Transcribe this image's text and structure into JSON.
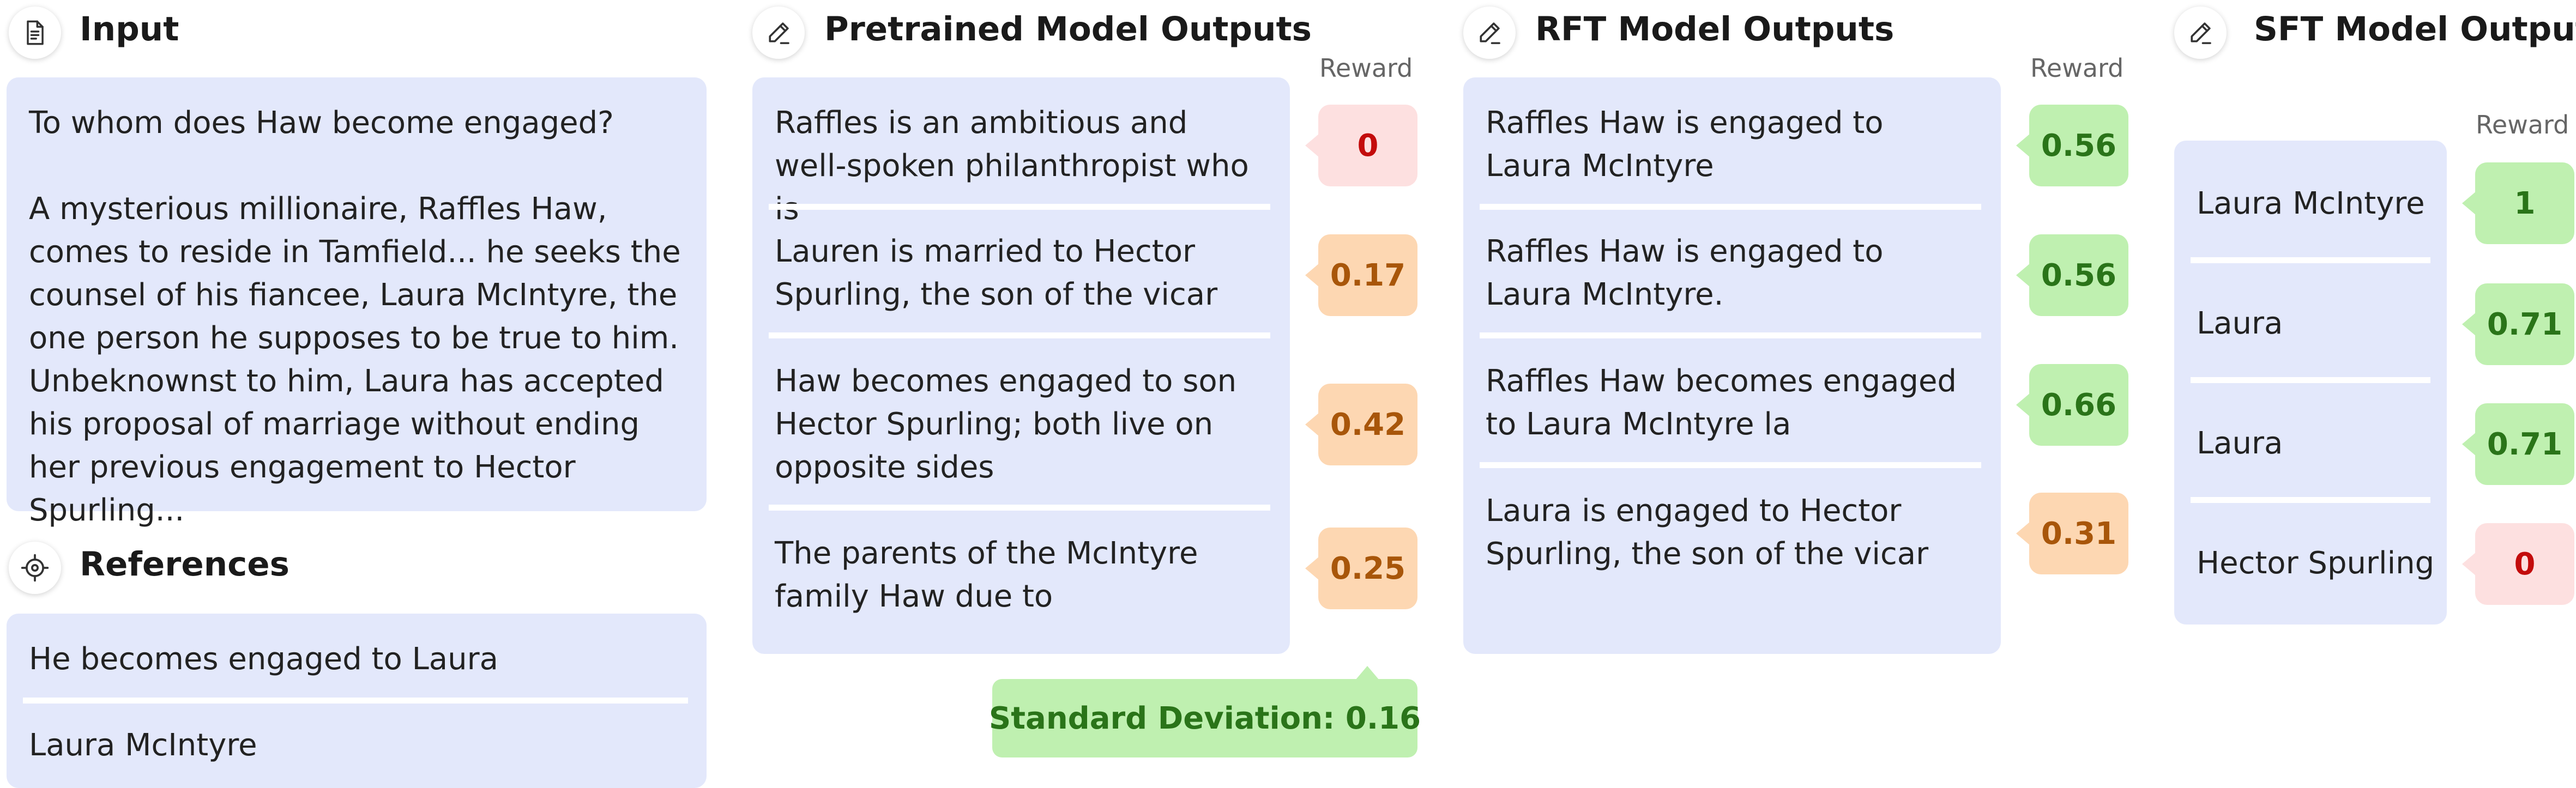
{
  "input": {
    "title": "Input",
    "question": "To whom does Haw become engaged?",
    "passage": "A mysterious millionaire, Raffles Haw, comes to reside in Tamfield... he seeks the counsel of his fiancee, Laura McIntyre, the one person he supposes to be true to him. Unbeknownst to him, Laura has accepted his proposal of marriage without ending her previous engagement to Hector Spurling..."
  },
  "references": {
    "title": "References",
    "items": [
      "He becomes engaged to Laura",
      "Laura McIntyre"
    ]
  },
  "pretrained": {
    "title": "Pretrained Model Outputs",
    "reward_label": "Reward",
    "items": [
      {
        "text": "Raffles is an ambitious and well-spoken philanthropist who is",
        "reward": "0"
      },
      {
        "text": "Lauren is married to Hector Spurling, the son of the vicar",
        "reward": "0.17"
      },
      {
        "text": "Haw becomes engaged to son Hector Spurling; both live on opposite sides",
        "reward": "0.42"
      },
      {
        "text": "The parents of the McIntyre family Haw due to",
        "reward": "0.25"
      }
    ],
    "std_label": "Standard Deviation: 0.16"
  },
  "rft": {
    "title": "RFT Model Outputs",
    "reward_label": "Reward",
    "items": [
      {
        "text": "Raffles Haw is engaged to Laura McIntyre",
        "reward": "0.56"
      },
      {
        "text": "Raffles Haw is engaged to Laura McIntyre.",
        "reward": "0.56"
      },
      {
        "text": "Raffles Haw becomes engaged to Laura McIntyre la",
        "reward": "0.66"
      },
      {
        "text": "Laura is engaged to Hector Spurling, the son of the vicar",
        "reward": "0.31"
      }
    ]
  },
  "sft": {
    "title": "SFT Model Outputs",
    "reward_label": "Reward",
    "items": [
      {
        "text": "Laura McIntyre",
        "reward": "1"
      },
      {
        "text": "Laura",
        "reward": "0.71"
      },
      {
        "text": "Laura",
        "reward": "0.71"
      },
      {
        "text": "Hector Spurling",
        "reward": "0"
      }
    ]
  },
  "colors": {
    "panel": "#e3e8fb",
    "badge_green": "#bff0b0",
    "badge_orange": "#fdd7b2",
    "badge_red": "#fde0e0"
  },
  "icons": {
    "input": "document-icon",
    "references": "target-icon",
    "outputs": "pen-icon"
  }
}
